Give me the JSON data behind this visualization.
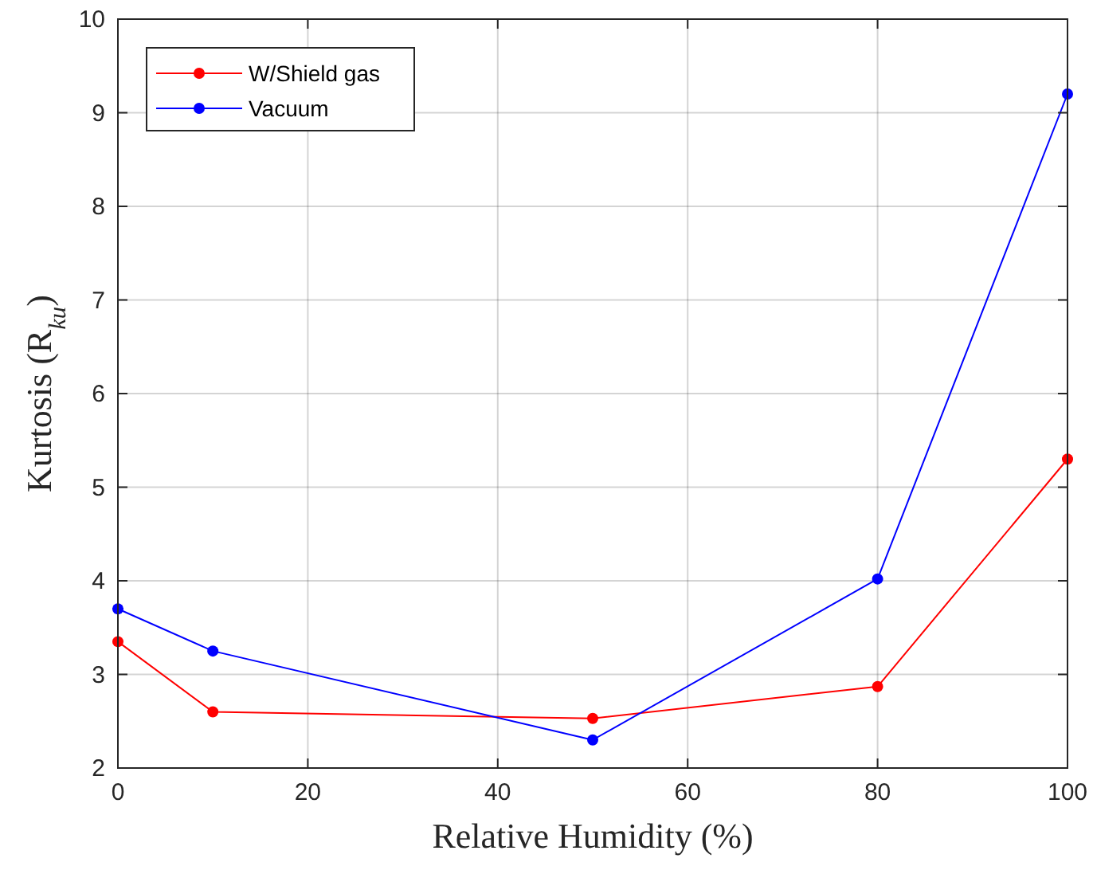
{
  "chart_data": {
    "type": "line",
    "xlabel": "Relative Humidity (%)",
    "ylabel": "Kurtosis (R$_{ku}$)",
    "x": [
      0,
      10,
      50,
      80,
      100
    ],
    "series": [
      {
        "name": "W/Shield gas",
        "color": "#ff0000",
        "values": [
          3.35,
          2.6,
          2.53,
          2.87,
          5.3
        ]
      },
      {
        "name": "Vacuum",
        "color": "#0000ff",
        "values": [
          3.7,
          3.25,
          2.3,
          4.02,
          9.2
        ]
      }
    ],
    "xlim": [
      0,
      100
    ],
    "xticks": [
      0,
      20,
      40,
      60,
      80,
      100
    ],
    "ylim": [
      2,
      10
    ],
    "yticks": [
      2,
      3,
      4,
      5,
      6,
      7,
      8,
      9,
      10
    ],
    "grid": true,
    "legend": "top left",
    "marker": "circle",
    "line_style": "solid"
  }
}
